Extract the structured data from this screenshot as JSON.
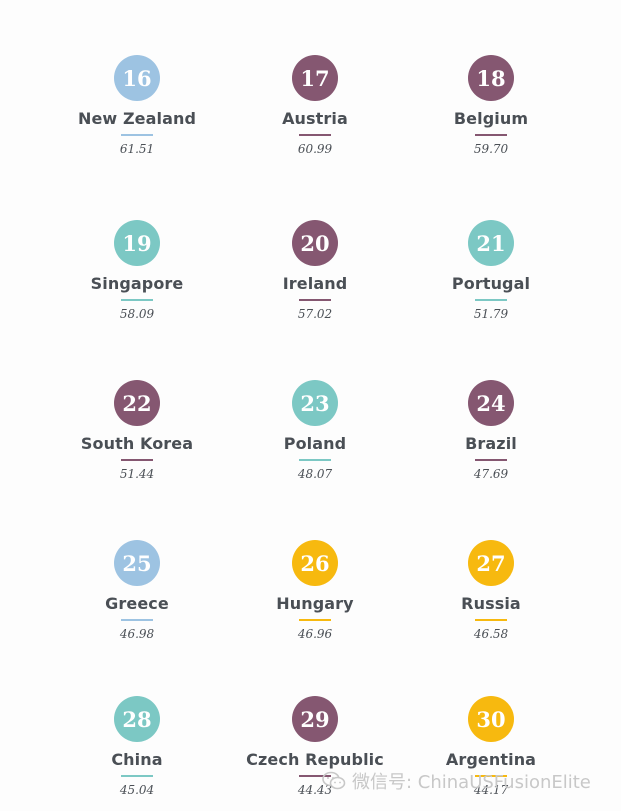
{
  "colors": {
    "blue": "#9dc3e2",
    "plum": "#855771",
    "teal": "#7cc8c4",
    "yellow": "#f7b90f"
  },
  "items": [
    {
      "rank": "16",
      "country": "New Zealand",
      "score": "61.51",
      "color": "blue"
    },
    {
      "rank": "17",
      "country": "Austria",
      "score": "60.99",
      "color": "plum"
    },
    {
      "rank": "18",
      "country": "Belgium",
      "score": "59.70",
      "color": "plum"
    },
    {
      "rank": "19",
      "country": "Singapore",
      "score": "58.09",
      "color": "teal"
    },
    {
      "rank": "20",
      "country": "Ireland",
      "score": "57.02",
      "color": "plum"
    },
    {
      "rank": "21",
      "country": "Portugal",
      "score": "51.79",
      "color": "teal"
    },
    {
      "rank": "22",
      "country": "South Korea",
      "score": "51.44",
      "color": "plum"
    },
    {
      "rank": "23",
      "country": "Poland",
      "score": "48.07",
      "color": "teal"
    },
    {
      "rank": "24",
      "country": "Brazil",
      "score": "47.69",
      "color": "plum"
    },
    {
      "rank": "25",
      "country": "Greece",
      "score": "46.98",
      "color": "blue"
    },
    {
      "rank": "26",
      "country": "Hungary",
      "score": "46.96",
      "color": "yellow"
    },
    {
      "rank": "27",
      "country": "Russia",
      "score": "46.58",
      "color": "yellow"
    },
    {
      "rank": "28",
      "country": "China",
      "score": "45.04",
      "color": "teal"
    },
    {
      "rank": "29",
      "country": "Czech Republic",
      "score": "44.43",
      "color": "plum"
    },
    {
      "rank": "30",
      "country": "Argentina",
      "score": "44.17",
      "color": "yellow"
    }
  ],
  "watermark": {
    "text": "微信号: ChinaUSFusionElite",
    "icon": "wechat-icon"
  }
}
